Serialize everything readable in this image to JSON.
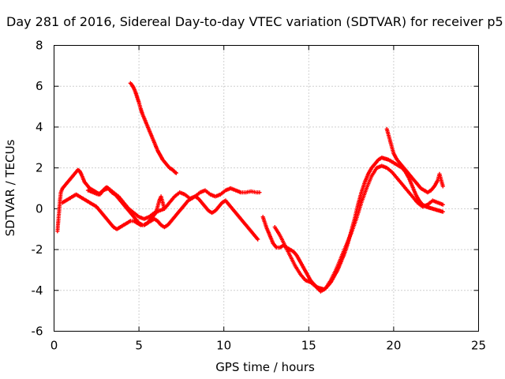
{
  "chart_data": {
    "type": "scatter",
    "title": "Day 281 of 2016, Sidereal Day-to-day VTEC variation (SDTVAR) for receiver p5",
    "xlabel": "GPS time / hours",
    "ylabel": "SDTVAR / TECUs",
    "xlim": [
      0,
      25
    ],
    "ylim": [
      -6,
      8
    ],
    "xticks": [
      "0",
      "5",
      "10",
      "15",
      "20",
      "25"
    ],
    "yticks": [
      "-6",
      "-4",
      "-2",
      "0",
      "2",
      "4",
      "6",
      "8"
    ],
    "grid": true,
    "marker": "plus",
    "color": "#ff0000",
    "series": [
      {
        "x": [
          0.2,
          0.25,
          0.3,
          0.35,
          0.4,
          0.5,
          0.6,
          0.7,
          0.8,
          0.9,
          1.0,
          1.1,
          1.2,
          1.3,
          1.4,
          1.5,
          1.6,
          1.7,
          1.8,
          1.9,
          2.0,
          2.1,
          2.2,
          2.3,
          2.4,
          2.5,
          2.6,
          2.7,
          2.8,
          2.9,
          3.0,
          3.1,
          3.2,
          3.3,
          3.4,
          3.5,
          3.6,
          3.7,
          3.8,
          3.9,
          4.0,
          4.1,
          4.2,
          4.3,
          4.4,
          4.5,
          4.6,
          4.7,
          4.8,
          4.9,
          5.0,
          5.1,
          5.2,
          5.3,
          5.4,
          5.5,
          5.6,
          5.7,
          5.8,
          5.9,
          6.0,
          6.1,
          6.2,
          6.3,
          6.4,
          6.5
        ],
        "y": [
          -1.1,
          -0.6,
          -0.1,
          0.4,
          0.8,
          1.0,
          1.1,
          1.2,
          1.3,
          1.4,
          1.5,
          1.6,
          1.7,
          1.8,
          1.9,
          1.85,
          1.7,
          1.5,
          1.3,
          1.2,
          1.1,
          1.0,
          0.95,
          0.9,
          0.85,
          0.8,
          0.75,
          0.7,
          0.8,
          0.9,
          1.0,
          1.05,
          1.0,
          0.9,
          0.8,
          0.75,
          0.7,
          0.6,
          0.5,
          0.4,
          0.3,
          0.2,
          0.1,
          0.0,
          -0.1,
          -0.2,
          -0.3,
          -0.4,
          -0.5,
          -0.6,
          -0.7,
          -0.75,
          -0.8,
          -0.8,
          -0.75,
          -0.7,
          -0.6,
          -0.5,
          -0.4,
          -0.3,
          -0.2,
          0.1,
          0.4,
          0.6,
          0.3,
          0.0
        ]
      },
      {
        "x": [
          0.5,
          0.7,
          0.9,
          1.1,
          1.3,
          1.5,
          1.7,
          1.9,
          2.1,
          2.3,
          2.5,
          2.7,
          2.9,
          3.1,
          3.3,
          3.5,
          3.7,
          3.9,
          4.1,
          4.3,
          4.5,
          4.7,
          4.9,
          5.1,
          5.3,
          5.5,
          5.7,
          5.9,
          6.1,
          6.3,
          6.5,
          6.7,
          6.9,
          7.1,
          7.3,
          7.5,
          7.7,
          7.9,
          8.1,
          8.3,
          8.5,
          8.7,
          8.9,
          9.1,
          9.3,
          9.5,
          9.7,
          9.9,
          10.1,
          10.3,
          10.5,
          10.7,
          10.9,
          11.1,
          11.3,
          11.5,
          11.7,
          11.9,
          12.0
        ],
        "y": [
          0.3,
          0.4,
          0.5,
          0.6,
          0.7,
          0.6,
          0.5,
          0.4,
          0.3,
          0.2,
          0.1,
          -0.1,
          -0.3,
          -0.5,
          -0.7,
          -0.9,
          -1.0,
          -0.9,
          -0.8,
          -0.7,
          -0.6,
          -0.6,
          -0.7,
          -0.8,
          -0.8,
          -0.7,
          -0.6,
          -0.5,
          -0.6,
          -0.8,
          -0.9,
          -0.8,
          -0.6,
          -0.4,
          -0.2,
          0.0,
          0.2,
          0.4,
          0.5,
          0.6,
          0.5,
          0.3,
          0.1,
          -0.1,
          -0.2,
          -0.1,
          0.1,
          0.3,
          0.4,
          0.2,
          0.0,
          -0.2,
          -0.4,
          -0.6,
          -0.8,
          -1.0,
          -1.2,
          -1.4,
          -1.5
        ]
      },
      {
        "x": [
          2.0,
          2.3,
          2.6,
          2.9,
          3.2,
          3.5,
          3.8,
          4.1,
          4.4,
          4.7,
          5.0,
          5.3,
          5.6,
          5.9,
          6.2,
          6.5,
          6.8,
          7.1,
          7.4,
          7.7,
          8.0,
          8.3,
          8.6,
          8.9,
          9.2,
          9.5,
          9.8,
          10.1,
          10.4,
          10.7,
          11.0,
          11.3,
          11.6,
          11.9,
          12.1
        ],
        "y": [
          0.9,
          0.8,
          0.7,
          0.9,
          1.0,
          0.8,
          0.6,
          0.3,
          0.0,
          -0.2,
          -0.4,
          -0.5,
          -0.4,
          -0.2,
          -0.1,
          0.0,
          0.3,
          0.6,
          0.8,
          0.7,
          0.5,
          0.6,
          0.8,
          0.9,
          0.7,
          0.6,
          0.7,
          0.9,
          1.0,
          0.9,
          0.8,
          0.8,
          0.85,
          0.8,
          0.8
        ]
      },
      {
        "x": [
          4.5,
          4.6,
          4.7,
          4.8,
          4.9,
          5.0,
          5.1,
          5.2,
          5.3,
          5.4,
          5.5,
          5.6,
          5.7,
          5.8,
          5.9,
          6.0,
          6.1,
          6.2,
          6.3,
          6.4,
          6.5,
          6.6,
          6.7,
          6.8,
          6.9,
          7.0,
          7.1,
          7.2
        ],
        "y": [
          6.15,
          6.05,
          5.9,
          5.7,
          5.45,
          5.2,
          4.9,
          4.65,
          4.45,
          4.25,
          4.05,
          3.85,
          3.65,
          3.45,
          3.25,
          3.05,
          2.85,
          2.7,
          2.55,
          2.4,
          2.3,
          2.2,
          2.1,
          2.0,
          1.95,
          1.9,
          1.8,
          1.75
        ]
      },
      {
        "x": [
          12.3,
          12.5,
          12.7,
          12.9,
          13.1,
          13.3,
          13.5,
          13.7,
          13.9,
          14.1,
          14.3,
          14.5,
          14.7,
          14.9,
          15.1,
          15.3,
          15.5,
          15.7,
          15.9,
          16.1,
          16.3,
          16.5,
          16.7,
          16.9,
          17.1,
          17.3,
          17.5,
          17.7,
          17.9,
          18.1,
          18.3,
          18.5,
          18.7,
          18.9,
          19.1,
          19.3,
          19.5,
          19.7,
          19.9,
          20.1,
          20.3,
          20.5,
          20.7,
          20.9,
          21.1,
          21.3,
          21.5,
          21.7,
          21.9,
          22.1,
          22.3,
          22.5,
          22.7,
          22.9
        ],
        "y": [
          -0.4,
          -0.9,
          -1.3,
          -1.7,
          -1.9,
          -1.9,
          -1.8,
          -1.9,
          -2.0,
          -2.1,
          -2.3,
          -2.6,
          -2.9,
          -3.2,
          -3.5,
          -3.7,
          -3.85,
          -3.9,
          -3.95,
          -3.8,
          -3.6,
          -3.3,
          -3.0,
          -2.6,
          -2.2,
          -1.7,
          -1.1,
          -0.5,
          0.2,
          0.8,
          1.3,
          1.7,
          2.0,
          2.2,
          2.4,
          2.5,
          2.45,
          2.4,
          2.3,
          2.2,
          2.1,
          2.0,
          1.8,
          1.5,
          1.1,
          0.7,
          0.4,
          0.2,
          0.1,
          0.05,
          0.0,
          -0.05,
          -0.1,
          -0.15
        ]
      },
      {
        "x": [
          13.0,
          13.3,
          13.6,
          13.9,
          14.2,
          14.5,
          14.8,
          15.1,
          15.4,
          15.7,
          16.0,
          16.3,
          16.6,
          16.9,
          17.2,
          17.5,
          17.8,
          18.1,
          18.4,
          18.7,
          19.0,
          19.3,
          19.6,
          19.9,
          20.2,
          20.5,
          20.8,
          21.1,
          21.4,
          21.7,
          22.0,
          22.3,
          22.6,
          22.9
        ],
        "y": [
          -0.9,
          -1.3,
          -1.8,
          -2.3,
          -2.8,
          -3.2,
          -3.5,
          -3.6,
          -3.8,
          -4.05,
          -3.9,
          -3.5,
          -3.0,
          -2.4,
          -1.8,
          -1.2,
          -0.5,
          0.3,
          1.0,
          1.6,
          2.0,
          2.1,
          2.0,
          1.8,
          1.5,
          1.2,
          0.9,
          0.6,
          0.3,
          0.1,
          0.2,
          0.4,
          0.3,
          0.2
        ]
      },
      {
        "x": [
          19.6,
          19.7,
          19.8,
          19.9,
          20.0,
          20.2,
          20.4,
          20.6,
          20.8,
          21.0,
          21.2,
          21.4,
          21.6,
          21.8,
          22.0,
          22.2,
          22.4,
          22.6,
          22.7,
          22.8,
          22.9
        ],
        "y": [
          3.9,
          3.6,
          3.3,
          3.0,
          2.7,
          2.4,
          2.2,
          2.0,
          1.8,
          1.6,
          1.4,
          1.2,
          1.0,
          0.9,
          0.8,
          0.9,
          1.1,
          1.4,
          1.7,
          1.4,
          1.1
        ]
      }
    ]
  }
}
